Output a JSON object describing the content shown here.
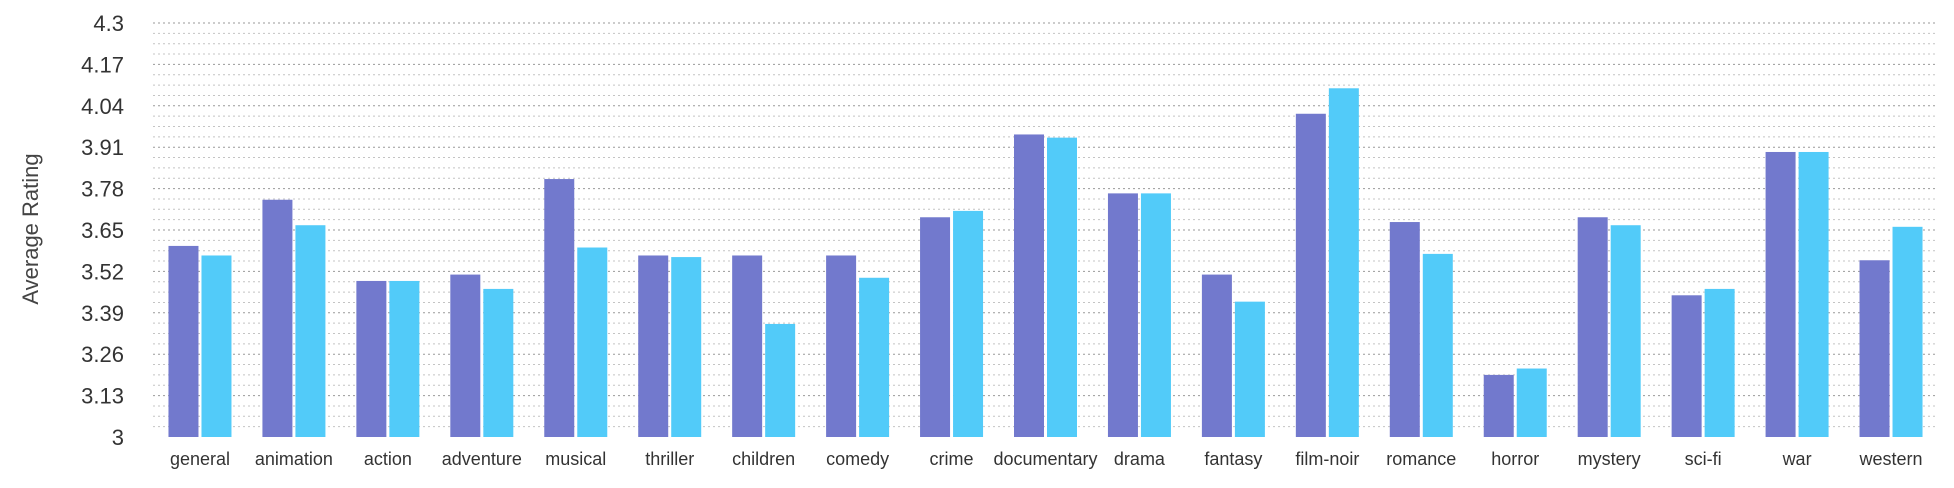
{
  "chart_data": {
    "type": "bar",
    "ylabel": "Average Rating",
    "ylim": [
      3,
      4.3
    ],
    "yticks": [
      "3",
      "3.13",
      "3.26",
      "3.39",
      "3.52",
      "3.65",
      "3.78",
      "3.91",
      "4.04",
      "4.17",
      "4.3"
    ],
    "grid": true,
    "categories": [
      "general",
      "animation",
      "action",
      "adventure",
      "musical",
      "thriller",
      "children",
      "comedy",
      "crime",
      "documentary",
      "drama",
      "fantasy",
      "film-noir",
      "romance",
      "horror",
      "mystery",
      "sci-fi",
      "war",
      "western"
    ],
    "series": [
      {
        "color": "#7279cd",
        "values": [
          3.6,
          3.745,
          3.49,
          3.51,
          3.81,
          3.57,
          3.57,
          3.57,
          3.69,
          3.95,
          3.765,
          3.51,
          4.015,
          3.675,
          3.195,
          3.69,
          3.445,
          3.895,
          3.555
        ]
      },
      {
        "color": "#52cbf9",
        "values": [
          3.57,
          3.665,
          3.49,
          3.465,
          3.595,
          3.565,
          3.355,
          3.5,
          3.71,
          3.94,
          3.765,
          3.425,
          4.095,
          3.575,
          3.215,
          3.665,
          3.465,
          3.895,
          3.66
        ]
      }
    ]
  }
}
